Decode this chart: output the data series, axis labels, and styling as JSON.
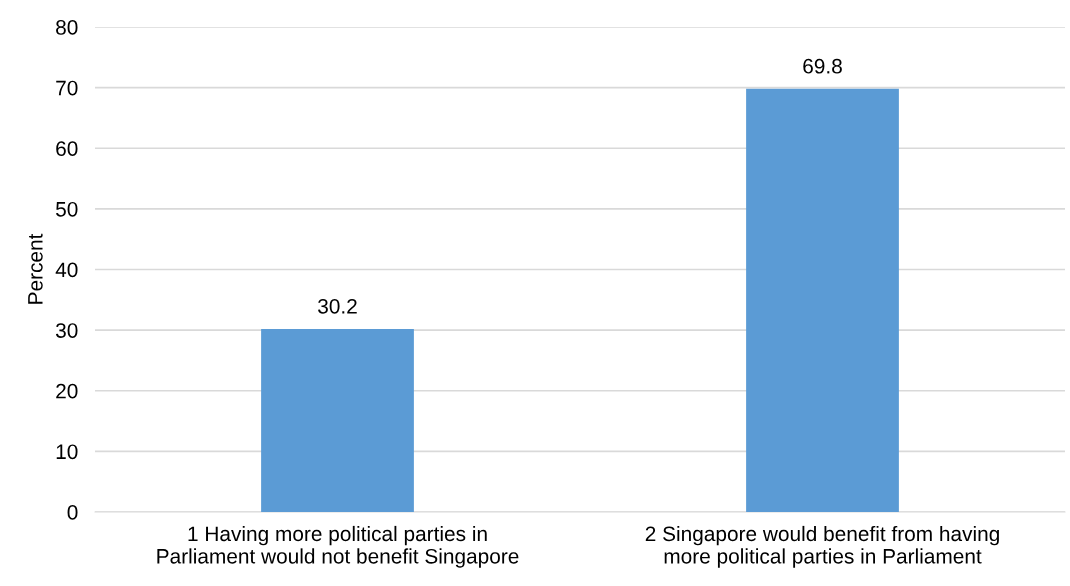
{
  "chart_data": {
    "type": "bar",
    "ylabel": "Percent",
    "categories": [
      "1 Having more political parties in\nParliament would not benefit Singapore",
      "2 Singapore would benefit from having\nmore political parties in Parliament"
    ],
    "values": [
      30.2,
      69.8
    ],
    "color": "#5b9bd5",
    "ylim": [
      0,
      80
    ],
    "yticks": [
      0,
      10,
      20,
      30,
      40,
      50,
      60,
      70,
      80
    ],
    "grid": "y",
    "data_labels": true
  }
}
